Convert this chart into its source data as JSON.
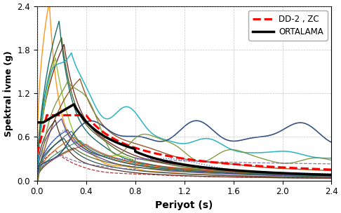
{
  "xlabel": "Periyot (s)",
  "ylabel": "Spektral İvme (g)",
  "xlim": [
    0.0,
    2.4
  ],
  "ylim": [
    0.0,
    2.4
  ],
  "xticks": [
    0.0,
    0.4,
    0.8,
    1.2,
    1.6,
    2.0,
    2.4
  ],
  "yticks": [
    0.0,
    0.6,
    1.2,
    1.8,
    2.4
  ],
  "legend_dd2": "DD-2 , ZC",
  "legend_ortalama": "ORTALAMA",
  "dd2_color": "#ff0000",
  "ortalama_color": "#000000",
  "background_color": "#ffffff",
  "grid_color": "#999999",
  "figsize": [
    4.86,
    3.04
  ],
  "dpi": 100
}
